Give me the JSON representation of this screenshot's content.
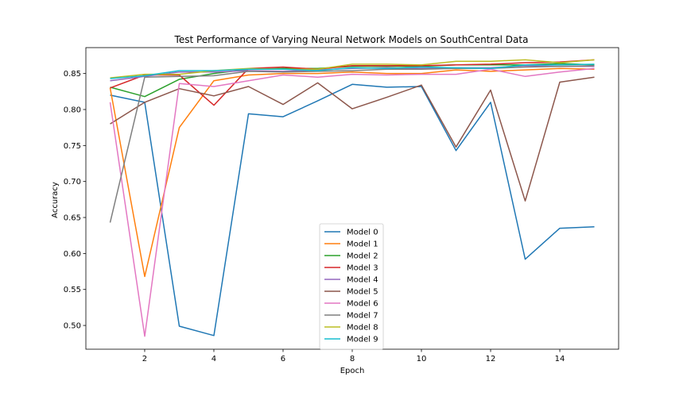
{
  "chart_data": {
    "type": "line",
    "title": "Test Performance of Varying Neural Network Models on SouthCentral Data",
    "xlabel": "Epoch",
    "ylabel": "Accuracy",
    "xlim": [
      0.3,
      15.7
    ],
    "ylim": [
      0.467,
      0.886
    ],
    "xticks": [
      2,
      4,
      6,
      8,
      10,
      12,
      14
    ],
    "xtick_labels": [
      "2",
      "4",
      "6",
      "8",
      "10",
      "12",
      "14"
    ],
    "yticks": [
      0.5,
      0.55,
      0.6,
      0.65,
      0.7,
      0.75,
      0.8,
      0.85
    ],
    "ytick_labels": [
      "0.50",
      "0.55",
      "0.60",
      "0.65",
      "0.70",
      "0.75",
      "0.80",
      "0.85"
    ],
    "grid": false,
    "legend_position": "lower-center",
    "x": [
      1,
      2,
      3,
      4,
      5,
      6,
      7,
      8,
      9,
      10,
      11,
      12,
      13,
      14,
      15
    ],
    "series": [
      {
        "name": "Model 0",
        "color": "#1f77b4",
        "values": [
          0.82,
          0.81,
          0.499,
          0.486,
          0.794,
          0.79,
          0.812,
          0.835,
          0.831,
          0.832,
          0.743,
          0.81,
          0.592,
          0.635,
          0.637
        ]
      },
      {
        "name": "Model 1",
        "color": "#ff7f0e",
        "values": [
          0.83,
          0.568,
          0.775,
          0.84,
          0.848,
          0.85,
          0.85,
          0.852,
          0.85,
          0.85,
          0.855,
          0.853,
          0.855,
          0.857,
          0.856
        ]
      },
      {
        "name": "Model 2",
        "color": "#2ca02c",
        "values": [
          0.831,
          0.818,
          0.842,
          0.85,
          0.856,
          0.857,
          0.857,
          0.86,
          0.86,
          0.86,
          0.862,
          0.862,
          0.862,
          0.864,
          0.862
        ]
      },
      {
        "name": "Model 3",
        "color": "#d62728",
        "values": [
          0.83,
          0.848,
          0.848,
          0.806,
          0.857,
          0.859,
          0.856,
          0.861,
          0.861,
          0.861,
          0.862,
          0.863,
          0.865,
          0.866,
          0.869
        ]
      },
      {
        "name": "Model 4",
        "color": "#9467bd",
        "values": [
          0.84,
          0.846,
          0.852,
          0.852,
          0.854,
          0.853,
          0.855,
          0.857,
          0.858,
          0.857,
          0.858,
          0.858,
          0.861,
          0.86,
          0.86
        ]
      },
      {
        "name": "Model 5",
        "color": "#8c564b",
        "values": [
          0.78,
          0.81,
          0.829,
          0.819,
          0.832,
          0.807,
          0.837,
          0.801,
          0.817,
          0.834,
          0.748,
          0.827,
          0.673,
          0.838,
          0.845
        ]
      },
      {
        "name": "Model 6",
        "color": "#e377c2",
        "values": [
          0.81,
          0.485,
          0.836,
          0.832,
          0.84,
          0.848,
          0.845,
          0.849,
          0.848,
          0.849,
          0.849,
          0.856,
          0.846,
          0.852,
          0.857
        ]
      },
      {
        "name": "Model 7",
        "color": "#7f7f7f",
        "values": [
          0.643,
          0.845,
          0.846,
          0.847,
          0.853,
          0.852,
          0.853,
          0.854,
          0.856,
          0.856,
          0.857,
          0.857,
          0.859,
          0.86,
          0.861
        ]
      },
      {
        "name": "Model 8",
        "color": "#bcbd22",
        "values": [
          0.844,
          0.849,
          0.849,
          0.854,
          0.857,
          0.856,
          0.856,
          0.863,
          0.863,
          0.862,
          0.867,
          0.867,
          0.869,
          0.865,
          0.869
        ]
      },
      {
        "name": "Model 9",
        "color": "#17becf",
        "values": [
          0.843,
          0.847,
          0.854,
          0.854,
          0.856,
          0.856,
          0.854,
          0.858,
          0.857,
          0.859,
          0.858,
          0.857,
          0.862,
          0.862,
          0.863
        ]
      }
    ]
  }
}
